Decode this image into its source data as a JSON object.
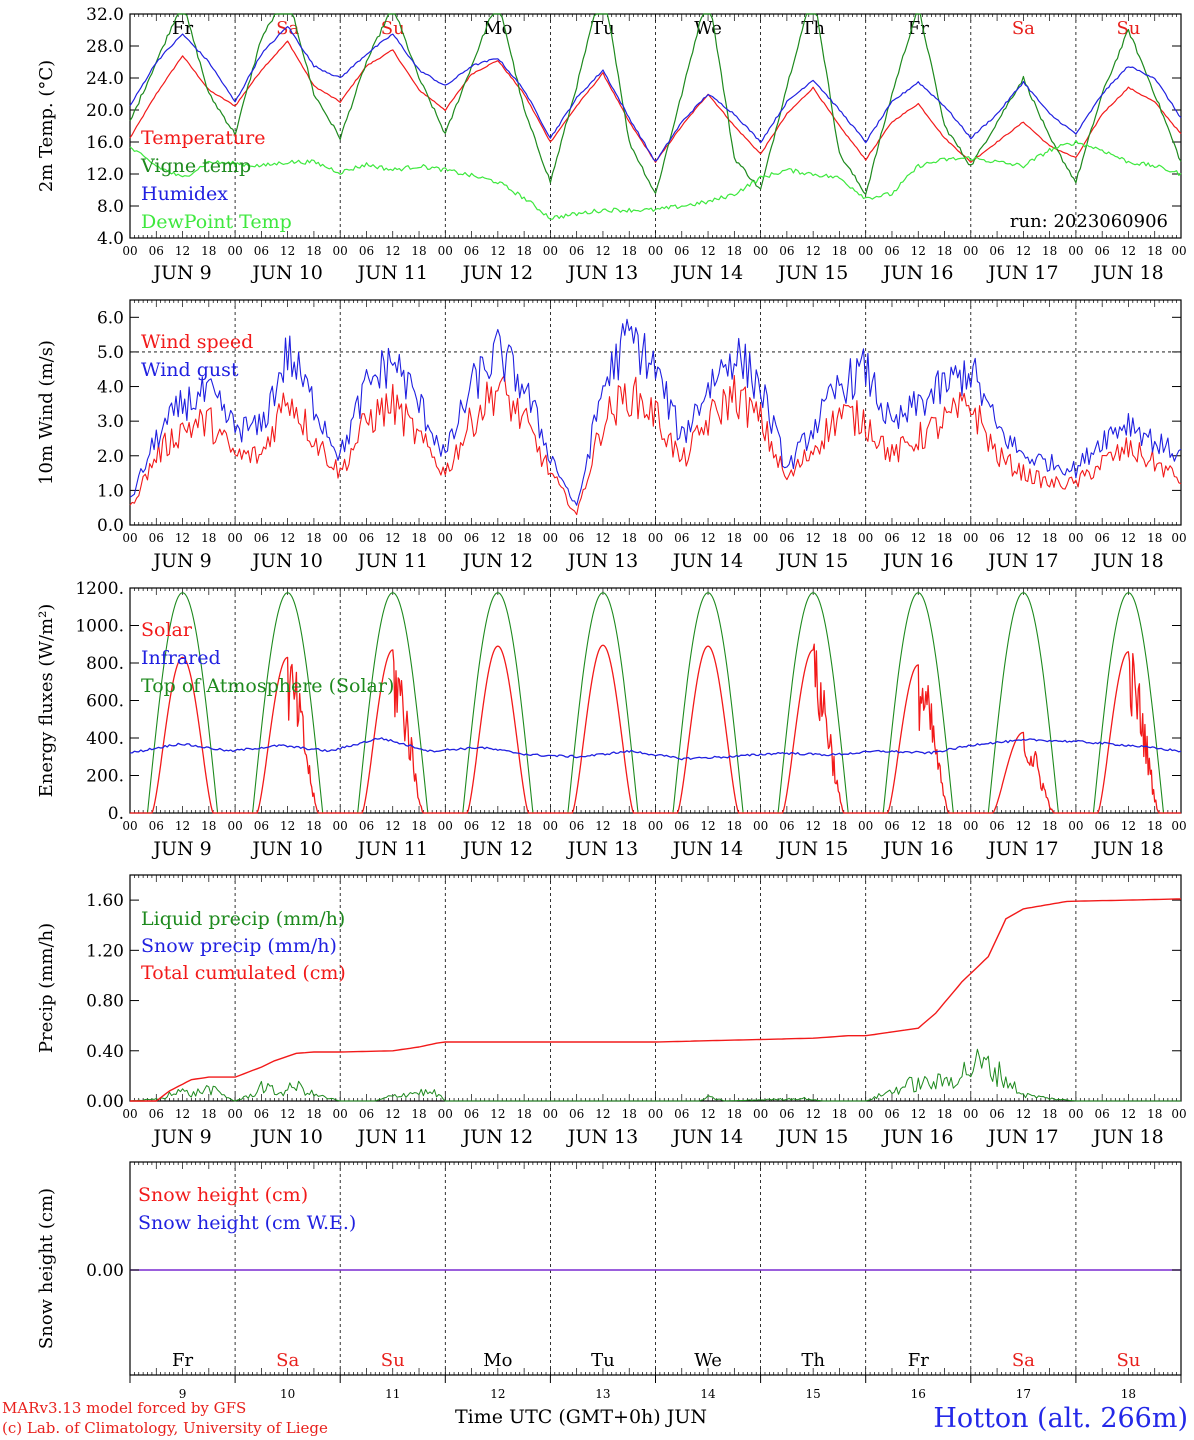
{
  "colors": {
    "temperature": "#f21a1a",
    "vigne": "#1e8a1e",
    "humidex": "#2020e0",
    "dewpoint": "#3ee83e",
    "axis": "#000000",
    "weekday": "#000000",
    "weekend": "#e8201c",
    "snow_line": "#7a2ad0"
  },
  "days": {
    "names": [
      "Fr",
      "Sa",
      "Su",
      "Mo",
      "Tu",
      "We",
      "Th",
      "Fr",
      "Sa",
      "Su"
    ],
    "weekend": [
      false,
      true,
      true,
      false,
      false,
      false,
      false,
      false,
      true,
      true
    ],
    "dates": [
      "JUN  9",
      "JUN 10",
      "JUN 11",
      "JUN 12",
      "JUN 13",
      "JUN 14",
      "JUN 15",
      "JUN 16",
      "JUN 17",
      "JUN 18"
    ],
    "numbers": [
      "9",
      "10",
      "11",
      "12",
      "13",
      "14",
      "15",
      "16",
      "17",
      "18"
    ],
    "hours": [
      "00",
      "06",
      "12",
      "18"
    ],
    "final_hour": "00"
  },
  "footer": {
    "model": "MARv3.13 model forced by GFS",
    "lab": "(c) Lab. of Climatology, University of Liege",
    "x_title": "Time UTC (GMT+0h) JUN",
    "station": "Hotton (alt. 266m)"
  },
  "chart_data": [
    {
      "type": "line",
      "ylabel": "2m Temp. (°C)",
      "ylim": [
        4,
        32
      ],
      "yticks": [
        "4.0",
        "8.0",
        "12.0",
        "16.0",
        "20.0",
        "24.0",
        "28.0",
        "32.0"
      ],
      "xlim_hours": [
        0,
        240
      ],
      "annotation": "run: 2023060906",
      "x_hours": [
        0,
        6,
        12,
        18,
        24,
        30,
        36,
        42,
        48,
        54,
        60,
        66,
        72,
        78,
        84,
        90,
        96,
        102,
        108,
        114,
        120,
        126,
        132,
        138,
        144,
        150,
        156,
        162,
        168,
        174,
        180,
        186,
        192,
        198,
        204,
        210,
        216,
        222,
        228,
        234,
        240
      ],
      "series": [
        {
          "name": "Temperature",
          "color_key": "temperature",
          "values": [
            16.5,
            22.0,
            26.8,
            22.5,
            20.5,
            25.0,
            28.6,
            23.0,
            21.0,
            25.5,
            27.5,
            22.5,
            20.0,
            24.5,
            26.2,
            22.0,
            16.0,
            20.5,
            24.6,
            18.5,
            13.5,
            18.0,
            22.0,
            18.0,
            14.5,
            19.5,
            22.8,
            18.0,
            13.8,
            18.5,
            20.8,
            16.5,
            13.5,
            16.0,
            18.5,
            15.5,
            14.0,
            19.5,
            22.8,
            21.0,
            17.0
          ]
        },
        {
          "name": "Vigne temp",
          "color_key": "vigne",
          "values": [
            18.5,
            26.0,
            33.5,
            22.0,
            17.0,
            29.0,
            34.5,
            22.0,
            16.5,
            26.0,
            33.0,
            24.0,
            17.0,
            25.5,
            34.0,
            20.0,
            11.0,
            23.0,
            36.0,
            16.0,
            9.5,
            22.0,
            35.0,
            14.0,
            10.0,
            23.0,
            35.0,
            14.5,
            9.5,
            22.0,
            33.0,
            18.0,
            13.0,
            18.5,
            24.0,
            16.5,
            11.0,
            22.0,
            30.0,
            22.0,
            13.5
          ]
        },
        {
          "name": "Humidex",
          "color_key": "humidex",
          "values": [
            20.5,
            26.0,
            29.5,
            26.0,
            21.0,
            27.0,
            30.5,
            25.5,
            24.0,
            27.0,
            29.5,
            25.0,
            23.0,
            25.5,
            26.5,
            22.5,
            16.5,
            21.5,
            25.0,
            19.0,
            13.5,
            18.5,
            22.0,
            19.5,
            16.0,
            21.0,
            23.8,
            20.0,
            16.0,
            21.0,
            23.5,
            20.5,
            16.5,
            19.5,
            23.5,
            19.5,
            17.0,
            22.0,
            25.5,
            24.0,
            19.0
          ]
        },
        {
          "name": "DewPoint Temp",
          "color_key": "dewpoint",
          "values": [
            15.3,
            13.0,
            11.5,
            13.5,
            13.3,
            13.0,
            13.5,
            13.5,
            12.2,
            13.2,
            12.5,
            13.0,
            12.5,
            11.8,
            11.0,
            9.0,
            6.5,
            7.0,
            7.5,
            7.5,
            7.5,
            8.0,
            8.5,
            9.5,
            11.5,
            12.5,
            12.0,
            11.5,
            9.0,
            9.5,
            13.0,
            13.8,
            14.0,
            13.5,
            13.0,
            15.0,
            16.0,
            15.0,
            13.5,
            13.0,
            12.0
          ]
        }
      ]
    },
    {
      "type": "line",
      "ylabel": "10m Wind (m/s)",
      "ylim": [
        0,
        6.5
      ],
      "yticks": [
        "0.0",
        "1.0",
        "2.0",
        "3.0",
        "4.0",
        "5.0",
        "6.0"
      ],
      "xlim_hours": [
        0,
        240
      ],
      "reference_line": 5.0,
      "x_hours": [
        0,
        6,
        12,
        18,
        24,
        30,
        36,
        42,
        48,
        54,
        60,
        66,
        72,
        78,
        84,
        90,
        96,
        102,
        108,
        114,
        120,
        126,
        132,
        138,
        144,
        150,
        156,
        162,
        168,
        174,
        180,
        186,
        192,
        198,
        204,
        210,
        216,
        222,
        228,
        234,
        240
      ],
      "series": [
        {
          "name": "Wind speed",
          "color_key": "temperature",
          "values": [
            0.5,
            2.0,
            2.8,
            3.0,
            2.0,
            2.0,
            3.8,
            2.5,
            1.5,
            3.0,
            3.5,
            2.5,
            1.5,
            3.0,
            4.0,
            3.0,
            1.5,
            0.3,
            3.0,
            3.8,
            3.2,
            1.8,
            3.0,
            3.8,
            3.0,
            1.3,
            2.2,
            3.2,
            3.0,
            2.0,
            2.5,
            3.0,
            3.5,
            2.0,
            1.5,
            1.2,
            1.2,
            1.8,
            2.2,
            1.8,
            1.3
          ]
        },
        {
          "name": "Wind gust",
          "color_key": "humidex",
          "values": [
            0.7,
            2.5,
            3.5,
            3.8,
            2.8,
            2.8,
            5.0,
            3.5,
            2.0,
            4.0,
            4.8,
            3.5,
            2.0,
            4.0,
            5.0,
            4.0,
            2.0,
            0.5,
            4.0,
            5.5,
            4.5,
            2.5,
            4.0,
            5.0,
            4.0,
            1.6,
            2.8,
            4.0,
            4.5,
            2.8,
            3.5,
            4.0,
            4.5,
            2.8,
            2.0,
            1.8,
            1.6,
            2.5,
            3.0,
            2.4,
            2.0
          ]
        }
      ]
    },
    {
      "type": "line",
      "ylabel": "Energy fluxes (W/m²)",
      "ylim": [
        0,
        1200
      ],
      "yticks": [
        "0.",
        "200.",
        "400.",
        "600.",
        "800.",
        "1000.",
        "1200."
      ],
      "xlim_hours": [
        0,
        240
      ],
      "solar_peaks_wm2": [
        830,
        830,
        870,
        890,
        895,
        890,
        870,
        790,
        430,
        860
      ],
      "toa_peak_wm2": 1175,
      "infrared_wm2": [
        320,
        370,
        330,
        360,
        330,
        400,
        330,
        350,
        310,
        300,
        330,
        290,
        300,
        320,
        310,
        330,
        320,
        370,
        390,
        380,
        360,
        330
      ],
      "series": [
        {
          "name": "Solar",
          "color_key": "temperature"
        },
        {
          "name": "Infrared",
          "color_key": "humidex"
        },
        {
          "name": "Top of Atmosphere (Solar)",
          "color_key": "vigne"
        }
      ]
    },
    {
      "type": "line",
      "ylabel": "Precip (mm/h)",
      "ylim": [
        0,
        1.8
      ],
      "yticks": [
        "0.00",
        "0.40",
        "0.80",
        "1.20",
        "1.60"
      ],
      "xlim_hours": [
        0,
        240
      ],
      "cumulated_x_hours": [
        0,
        6,
        9,
        14,
        18,
        24,
        30,
        33,
        38,
        42,
        48,
        60,
        66,
        70,
        72,
        84,
        96,
        120,
        132,
        144,
        156,
        164,
        168,
        174,
        180,
        184,
        190,
        196,
        200,
        204,
        214,
        228,
        240
      ],
      "cumulated_values": [
        0.0,
        0.0,
        0.08,
        0.17,
        0.19,
        0.19,
        0.27,
        0.32,
        0.38,
        0.39,
        0.39,
        0.4,
        0.43,
        0.46,
        0.47,
        0.47,
        0.47,
        0.47,
        0.48,
        0.49,
        0.5,
        0.52,
        0.52,
        0.55,
        0.58,
        0.7,
        0.95,
        1.15,
        1.45,
        1.53,
        1.59,
        1.6,
        1.61
      ],
      "liquid_x_hours": [
        0,
        8,
        10,
        14,
        18,
        24,
        28,
        30,
        34,
        38,
        42,
        48,
        56,
        60,
        66,
        70,
        72,
        130,
        132,
        136,
        154,
        158,
        168,
        174,
        178,
        182,
        186,
        190,
        194,
        198,
        204,
        210,
        216
      ],
      "liquid_values": [
        0.0,
        0.02,
        0.1,
        0.05,
        0.1,
        0.0,
        0.05,
        0.12,
        0.06,
        0.12,
        0.05,
        0.0,
        0.0,
        0.04,
        0.07,
        0.06,
        0.0,
        0.0,
        0.03,
        0.0,
        0.02,
        0.0,
        0.0,
        0.08,
        0.13,
        0.14,
        0.15,
        0.22,
        0.3,
        0.23,
        0.05,
        0.02,
        0.0
      ],
      "series": [
        {
          "name": "Liquid precip (mm/h)",
          "color_key": "vigne"
        },
        {
          "name": "Snow precip (mm/h)",
          "color_key": "humidex"
        },
        {
          "name": "Total cumulated (cm)",
          "color_key": "temperature"
        }
      ]
    },
    {
      "type": "line",
      "ylabel": "Snow height (cm)",
      "yticks": [
        "0.00"
      ],
      "xlim_hours": [
        0,
        240
      ],
      "value": 0.0,
      "series": [
        {
          "name": "Snow height (cm)",
          "color_key": "temperature"
        },
        {
          "name": "Snow height (cm W.E.)",
          "color_key": "humidex"
        }
      ]
    }
  ]
}
